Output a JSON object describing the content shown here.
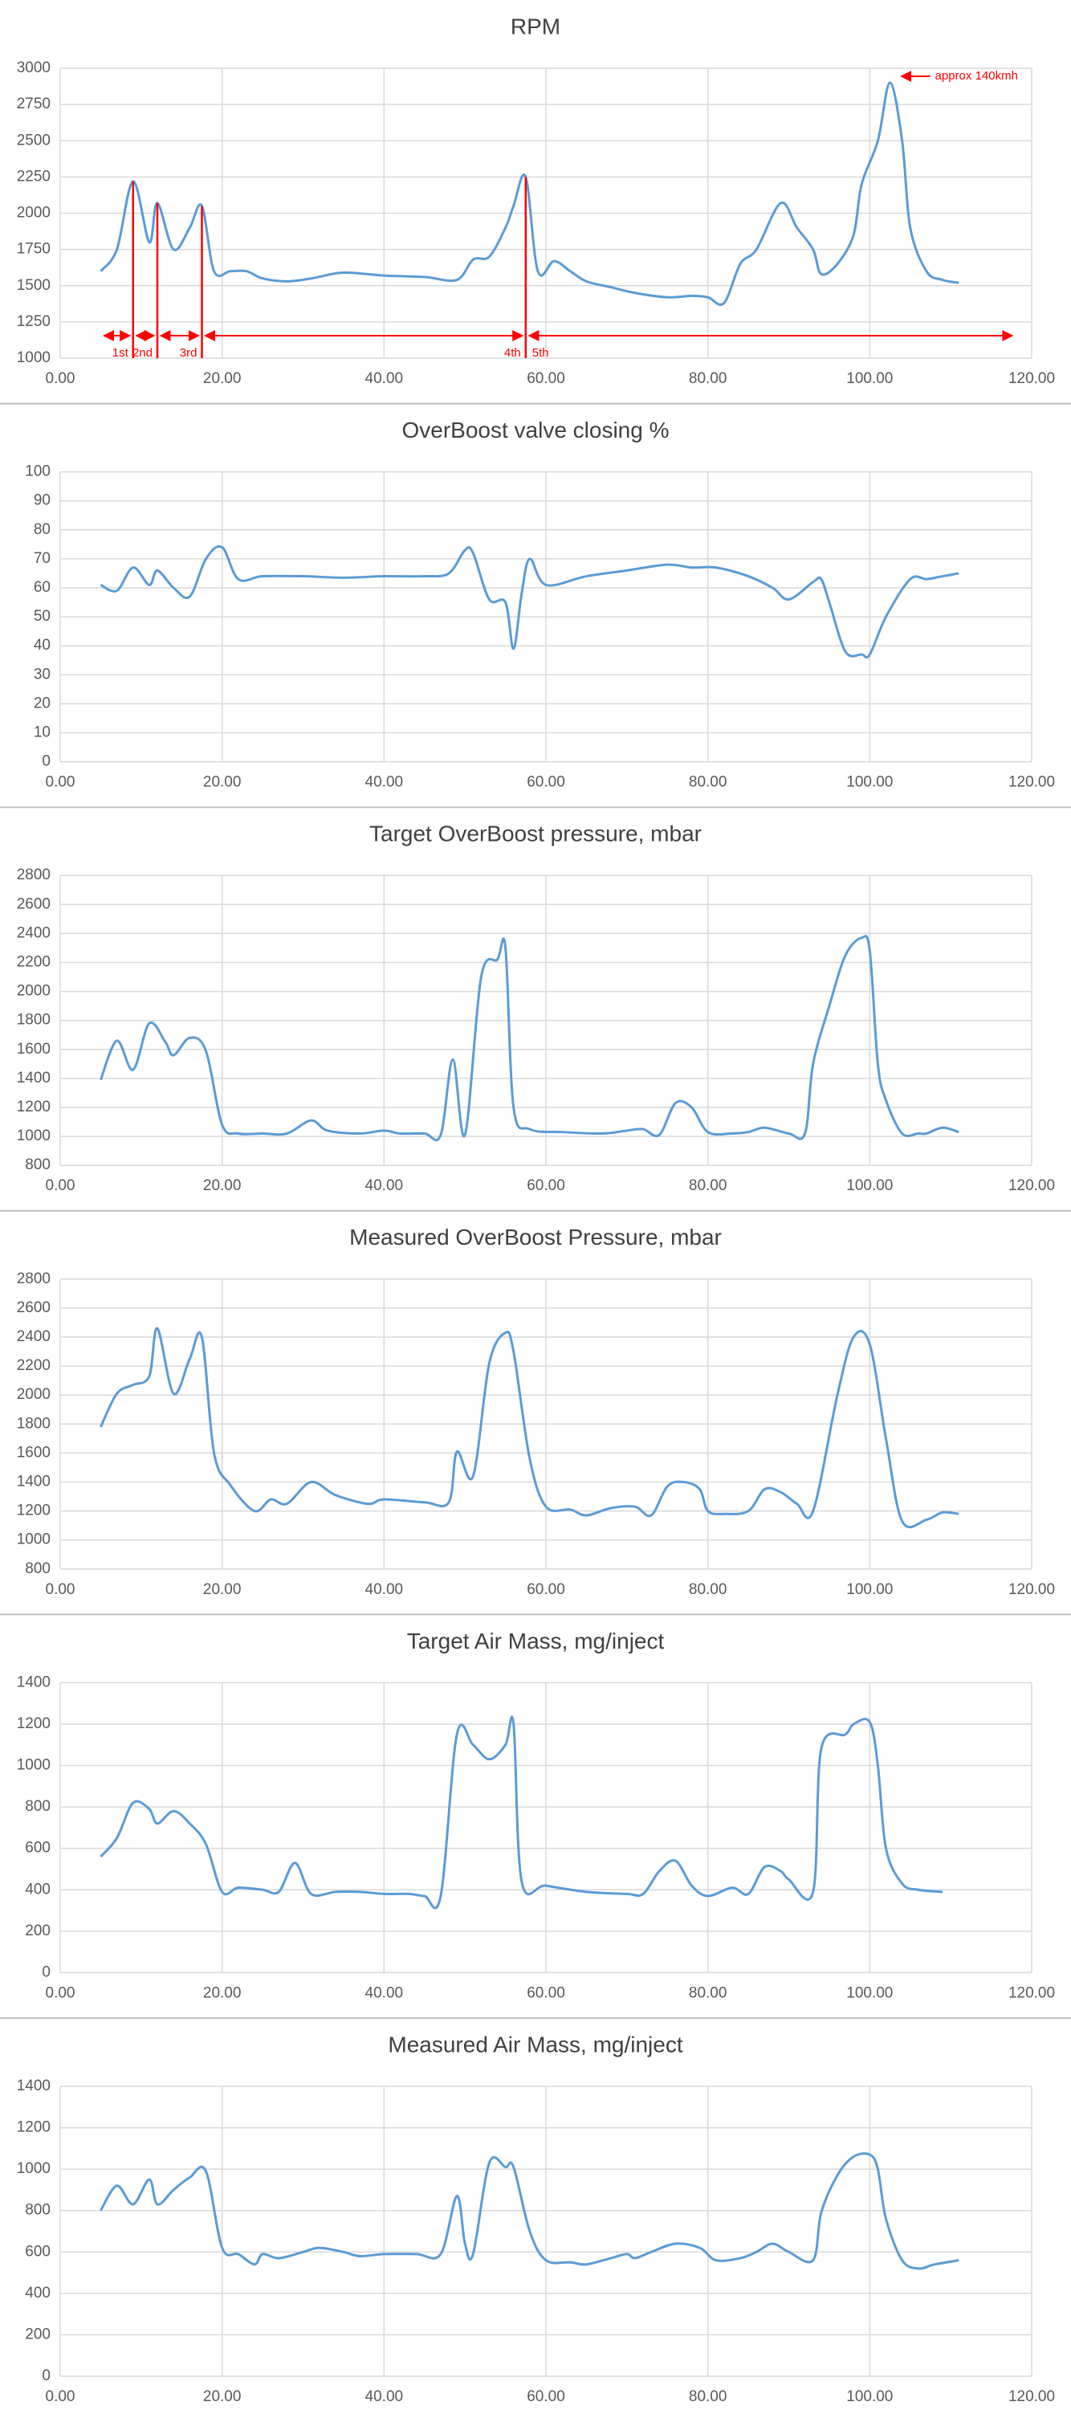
{
  "chart_data": [
    {
      "type": "line",
      "title": "RPM",
      "x": [
        5,
        7,
        9,
        11,
        12,
        14,
        16,
        17.5,
        19,
        21,
        23,
        25,
        28,
        31,
        35,
        40,
        45,
        49,
        51,
        53,
        55,
        56,
        57.5,
        59,
        61,
        63,
        65,
        68,
        71,
        75,
        78,
        80,
        82,
        84,
        86,
        89,
        91,
        93,
        94,
        96,
        98,
        99,
        101,
        102.5,
        104,
        105,
        107,
        109,
        111
      ],
      "series": [
        {
          "color": "#5b9bd5",
          "values": [
            1600,
            1750,
            2220,
            1800,
            2070,
            1750,
            1900,
            2050,
            1600,
            1600,
            1600,
            1550,
            1530,
            1550,
            1590,
            1570,
            1560,
            1540,
            1680,
            1700,
            1900,
            2050,
            2250,
            1600,
            1670,
            1600,
            1530,
            1490,
            1450,
            1420,
            1430,
            1420,
            1380,
            1650,
            1750,
            2070,
            1900,
            1750,
            1580,
            1650,
            1850,
            2200,
            2500,
            2900,
            2500,
            1900,
            1600,
            1540,
            1520
          ]
        }
      ],
      "xlim": [
        0,
        120
      ],
      "xticks": [
        {
          "value": 0,
          "label": "0.00"
        },
        {
          "value": 20,
          "label": "20.00"
        },
        {
          "value": 40,
          "label": "40.00"
        },
        {
          "value": 60,
          "label": "60.00"
        },
        {
          "value": 80,
          "label": "80.00"
        },
        {
          "value": 100,
          "label": "100.00"
        },
        {
          "value": 120,
          "label": "120.00"
        }
      ],
      "ylim": [
        1000,
        3000
      ],
      "yticks": [
        1000,
        1250,
        1500,
        1750,
        2000,
        2250,
        2500,
        2750,
        3000
      ],
      "grid": true,
      "annotations": {
        "color": "#ff0000",
        "shift_x": [
          9,
          12,
          17.5,
          57.5
        ],
        "gears": [
          "1st",
          "2nd",
          "3rd",
          "4th",
          "5th"
        ],
        "note": {
          "text": "approx 140kmh",
          "x": 102.5,
          "y": 2900
        }
      }
    },
    {
      "type": "line",
      "title": "OverBoost valve closing %",
      "x": [
        5,
        7,
        9,
        11,
        12,
        14,
        16,
        18,
        20,
        22,
        25,
        30,
        35,
        40,
        45,
        48,
        50,
        51,
        53,
        55,
        56,
        57,
        58,
        60,
        65,
        70,
        75,
        78,
        81,
        85,
        88,
        90,
        93,
        94,
        95,
        97,
        99,
        100,
        102,
        105,
        107,
        109,
        111
      ],
      "series": [
        {
          "color": "#5b9bd5",
          "values": [
            61,
            59,
            67,
            61,
            66,
            60,
            57,
            70,
            74,
            63,
            64,
            64,
            63.5,
            64,
            64,
            65,
            73,
            72,
            56,
            55,
            39,
            58,
            70,
            61,
            64,
            66,
            68,
            67,
            67,
            64,
            60,
            56,
            62,
            63,
            55,
            38,
            37,
            37,
            50,
            63,
            63,
            64,
            65
          ]
        }
      ],
      "xlim": [
        0,
        120
      ],
      "xticks": [
        {
          "value": 0,
          "label": "0.00"
        },
        {
          "value": 20,
          "label": "20.00"
        },
        {
          "value": 40,
          "label": "40.00"
        },
        {
          "value": 60,
          "label": "60.00"
        },
        {
          "value": 80,
          "label": "80.00"
        },
        {
          "value": 100,
          "label": "100.00"
        },
        {
          "value": 120,
          "label": "120.00"
        }
      ],
      "ylim": [
        0,
        100
      ],
      "yticks": [
        0,
        10,
        20,
        30,
        40,
        50,
        60,
        70,
        80,
        90,
        100
      ],
      "grid": true
    },
    {
      "type": "line",
      "title": "Target OverBoost pressure, mbar",
      "x": [
        5,
        7,
        9,
        11,
        13,
        14,
        16,
        18,
        20,
        22,
        25,
        28,
        31,
        33,
        37,
        40,
        42,
        45,
        47,
        48.5,
        50,
        52,
        54,
        55,
        56,
        58,
        62,
        67,
        70,
        72,
        74,
        76,
        78,
        80,
        83,
        85,
        87,
        90,
        92,
        93,
        95,
        97,
        99,
        100,
        101,
        102,
        104,
        106,
        107,
        109,
        111
      ],
      "series": [
        {
          "color": "#5b9bd5",
          "values": [
            1390,
            1660,
            1460,
            1780,
            1650,
            1560,
            1680,
            1590,
            1080,
            1020,
            1020,
            1020,
            1110,
            1040,
            1020,
            1040,
            1020,
            1020,
            1010,
            1530,
            1010,
            2100,
            2220,
            2300,
            1200,
            1050,
            1030,
            1020,
            1040,
            1050,
            1010,
            1230,
            1200,
            1030,
            1020,
            1030,
            1060,
            1020,
            1020,
            1500,
            1900,
            2250,
            2370,
            2280,
            1500,
            1250,
            1020,
            1020,
            1020,
            1060,
            1030
          ]
        }
      ],
      "xlim": [
        0,
        120
      ],
      "xticks": [
        {
          "value": 0,
          "label": "0.00"
        },
        {
          "value": 20,
          "label": "20.00"
        },
        {
          "value": 40,
          "label": "40.00"
        },
        {
          "value": 60,
          "label": "60.00"
        },
        {
          "value": 80,
          "label": "80.00"
        },
        {
          "value": 100,
          "label": "100.00"
        },
        {
          "value": 120,
          "label": "120.00"
        }
      ],
      "ylim": [
        800,
        2800
      ],
      "yticks": [
        800,
        1000,
        1200,
        1400,
        1600,
        1800,
        2000,
        2200,
        2400,
        2600,
        2800
      ],
      "grid": true
    },
    {
      "type": "line",
      "title": "Measured OverBoost Pressure, mbar",
      "x": [
        5,
        7,
        9,
        11,
        12,
        14,
        16,
        17.5,
        19,
        21,
        24,
        26,
        28,
        31,
        34,
        38,
        40,
        45,
        48,
        49,
        51,
        53,
        55,
        56,
        58,
        60,
        63,
        65,
        68,
        71,
        73,
        75,
        77,
        79,
        80,
        82,
        85,
        87,
        89,
        91,
        93,
        96,
        98,
        100,
        102,
        104,
        107,
        109,
        111
      ],
      "series": [
        {
          "color": "#5b9bd5",
          "values": [
            1780,
            2010,
            2070,
            2130,
            2460,
            2010,
            2250,
            2400,
            1600,
            1380,
            1200,
            1280,
            1250,
            1400,
            1310,
            1250,
            1280,
            1260,
            1260,
            1610,
            1440,
            2220,
            2430,
            2300,
            1560,
            1230,
            1210,
            1170,
            1220,
            1230,
            1170,
            1370,
            1400,
            1350,
            1200,
            1180,
            1200,
            1350,
            1330,
            1250,
            1200,
            2000,
            2400,
            2350,
            1700,
            1130,
            1140,
            1190,
            1180
          ]
        }
      ],
      "xlim": [
        0,
        120
      ],
      "xticks": [
        {
          "value": 0,
          "label": "0.00"
        },
        {
          "value": 20,
          "label": "20.00"
        },
        {
          "value": 40,
          "label": "40.00"
        },
        {
          "value": 60,
          "label": "60.00"
        },
        {
          "value": 80,
          "label": "80.00"
        },
        {
          "value": 100,
          "label": "100.00"
        },
        {
          "value": 120,
          "label": "120.00"
        }
      ],
      "ylim": [
        800,
        2800
      ],
      "yticks": [
        800,
        1000,
        1200,
        1400,
        1600,
        1800,
        2000,
        2200,
        2400,
        2600,
        2800
      ],
      "grid": true
    },
    {
      "type": "line",
      "title": "Target Air Mass, mg/inject",
      "x": [
        5,
        7,
        9,
        11,
        12,
        14,
        16,
        18,
        20,
        22,
        25,
        27,
        29,
        31,
        34,
        37,
        40,
        43,
        45,
        47,
        49,
        51,
        53,
        55,
        56,
        57,
        60,
        65,
        70,
        72,
        74,
        76,
        78,
        80,
        83,
        85,
        87,
        89,
        90,
        93,
        94,
        97,
        98,
        100,
        101,
        102,
        104,
        106,
        109
      ],
      "series": [
        {
          "color": "#5b9bd5",
          "values": [
            560,
            650,
            820,
            790,
            720,
            780,
            720,
            620,
            390,
            410,
            400,
            390,
            530,
            380,
            390,
            390,
            380,
            380,
            370,
            370,
            1150,
            1100,
            1030,
            1100,
            1200,
            440,
            420,
            390,
            380,
            380,
            490,
            540,
            420,
            370,
            410,
            380,
            510,
            490,
            450,
            390,
            1080,
            1150,
            1200,
            1210,
            1000,
            600,
            430,
            400,
            390
          ]
        }
      ],
      "xlim": [
        0,
        120
      ],
      "xticks": [
        {
          "value": 0,
          "label": "0.00"
        },
        {
          "value": 20,
          "label": "20.00"
        },
        {
          "value": 40,
          "label": "40.00"
        },
        {
          "value": 60,
          "label": "60.00"
        },
        {
          "value": 80,
          "label": "80.00"
        },
        {
          "value": 100,
          "label": "100.00"
        },
        {
          "value": 120,
          "label": "120.00"
        }
      ],
      "ylim": [
        0,
        1400
      ],
      "yticks": [
        0,
        200,
        400,
        600,
        800,
        1000,
        1200,
        1400
      ],
      "grid": true
    },
    {
      "type": "line",
      "title": "Measured Air Mass, mg/inject",
      "x": [
        5,
        7,
        9,
        11,
        12,
        14,
        16,
        18,
        20,
        22,
        24,
        25,
        27,
        30,
        32,
        35,
        37,
        40,
        44,
        47,
        49,
        50,
        51,
        53,
        55,
        56,
        58,
        60,
        63,
        65,
        68,
        70,
        71,
        73,
        76,
        79,
        81,
        84,
        86,
        88,
        90,
        93,
        94,
        96,
        98,
        100,
        101,
        102,
        104,
        106,
        108,
        111
      ],
      "series": [
        {
          "color": "#5b9bd5",
          "values": [
            800,
            920,
            830,
            950,
            830,
            900,
            960,
            990,
            620,
            590,
            540,
            590,
            570,
            600,
            620,
            600,
            580,
            590,
            590,
            590,
            870,
            640,
            590,
            1030,
            1010,
            1010,
            700,
            560,
            550,
            540,
            570,
            590,
            570,
            600,
            640,
            620,
            560,
            570,
            600,
            640,
            600,
            560,
            790,
            970,
            1060,
            1070,
            1000,
            760,
            560,
            520,
            540,
            560
          ]
        }
      ],
      "xlim": [
        0,
        120
      ],
      "xticks": [
        {
          "value": 0,
          "label": "0.00"
        },
        {
          "value": 20,
          "label": "20.00"
        },
        {
          "value": 40,
          "label": "40.00"
        },
        {
          "value": 60,
          "label": "60.00"
        },
        {
          "value": 80,
          "label": "80.00"
        },
        {
          "value": 100,
          "label": "100.00"
        },
        {
          "value": 120,
          "label": "120.00"
        }
      ],
      "ylim": [
        0,
        1400
      ],
      "yticks": [
        0,
        200,
        400,
        600,
        800,
        1000,
        1200,
        1400
      ],
      "grid": true
    }
  ]
}
